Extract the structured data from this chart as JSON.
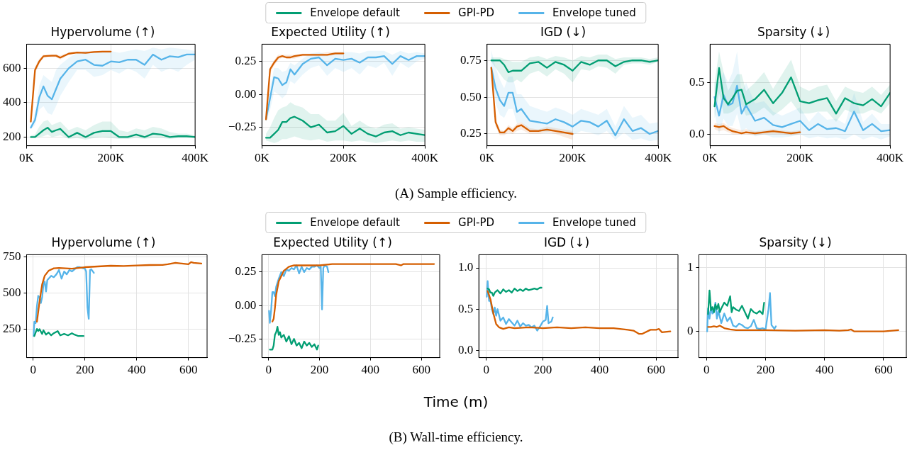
{
  "chart_data": [
    {
      "type": "line",
      "title": "Hypervolume (↑)",
      "grid": true,
      "xlim": [
        0,
        400000
      ],
      "xticks": [
        {
          "value": 0,
          "label": "0K"
        },
        {
          "value": 200000,
          "label": "200K"
        },
        {
          "value": 400000,
          "label": "400K"
        }
      ],
      "ylim": [
        150,
        740
      ],
      "yticks": [
        200,
        400,
        600
      ],
      "x": [
        10000,
        20000,
        30000,
        40000,
        50000,
        60000,
        70000,
        80000,
        100000,
        120000,
        140000,
        160000,
        180000,
        200000,
        220000,
        240000,
        260000,
        280000,
        300000,
        320000,
        340000,
        360000,
        380000,
        400000
      ],
      "series": [
        {
          "color": "#029e73",
          "values": [
            200,
            200,
            220,
            240,
            255,
            230,
            240,
            248,
            200,
            225,
            200,
            225,
            235,
            235,
            200,
            200,
            215,
            200,
            220,
            215,
            200,
            205,
            205,
            200
          ],
          "lower": [
            195,
            195,
            200,
            205,
            215,
            200,
            205,
            210,
            190,
            195,
            185,
            195,
            200,
            195,
            190,
            190,
            195,
            190,
            195,
            195,
            190,
            195,
            195,
            195
          ],
          "upper": [
            210,
            215,
            260,
            290,
            300,
            270,
            280,
            290,
            240,
            260,
            240,
            270,
            290,
            290,
            240,
            230,
            250,
            240,
            260,
            250,
            230,
            220,
            220,
            210
          ]
        },
        {
          "color": "#d55e00",
          "x": [
            10000,
            20000,
            30000,
            40000,
            50000,
            60000,
            70000,
            80000,
            100000,
            120000,
            140000,
            160000,
            180000,
            200000
          ],
          "values": [
            290,
            590,
            640,
            670,
            672,
            673,
            673,
            662,
            685,
            692,
            690,
            695,
            697,
            697
          ],
          "lower": [
            280,
            570,
            625,
            660,
            665,
            665,
            665,
            650,
            680,
            688,
            686,
            690,
            692,
            692
          ],
          "upper": [
            300,
            610,
            655,
            680,
            680,
            682,
            682,
            675,
            692,
            698,
            697,
            700,
            702,
            702
          ]
        },
        {
          "color": "#56b4e9",
          "values": [
            255,
            300,
            430,
            495,
            440,
            420,
            480,
            540,
            600,
            640,
            650,
            620,
            615,
            640,
            635,
            650,
            650,
            620,
            680,
            650,
            670,
            665,
            680,
            680
          ],
          "lower": [
            245,
            270,
            360,
            380,
            340,
            330,
            380,
            440,
            520,
            590,
            590,
            550,
            560,
            590,
            570,
            600,
            580,
            540,
            620,
            580,
            600,
            580,
            620,
            650
          ],
          "upper": [
            265,
            340,
            500,
            560,
            540,
            520,
            590,
            620,
            660,
            690,
            700,
            690,
            700,
            700,
            690,
            700,
            710,
            700,
            720,
            710,
            720,
            715,
            710,
            700
          ]
        }
      ]
    },
    {
      "type": "line",
      "title": "Expected Utility (↑)",
      "legend": "top",
      "grid": true,
      "xlim": [
        0,
        400000
      ],
      "xticks": [
        {
          "value": 0,
          "label": "0K"
        },
        {
          "value": 200000,
          "label": "200K"
        },
        {
          "value": 400000,
          "label": "400K"
        }
      ],
      "ylim": [
        -0.39,
        0.38
      ],
      "yticks": [
        {
          "value": -0.25,
          "label": "−0.25"
        },
        {
          "value": 0,
          "label": "0.00"
        },
        0.25
      ],
      "x": [
        10000,
        20000,
        30000,
        40000,
        50000,
        60000,
        70000,
        80000,
        100000,
        120000,
        140000,
        160000,
        180000,
        200000,
        220000,
        240000,
        260000,
        280000,
        300000,
        320000,
        340000,
        360000,
        380000,
        400000
      ],
      "series": [
        {
          "name": "Envelope default",
          "color": "#029e73",
          "values": [
            -0.33,
            -0.33,
            -0.3,
            -0.27,
            -0.21,
            -0.21,
            -0.18,
            -0.17,
            -0.2,
            -0.25,
            -0.23,
            -0.29,
            -0.28,
            -0.24,
            -0.3,
            -0.26,
            -0.3,
            -0.32,
            -0.29,
            -0.28,
            -0.31,
            -0.29,
            -0.3,
            -0.31
          ],
          "lower": [
            -0.35,
            -0.36,
            -0.37,
            -0.36,
            -0.34,
            -0.34,
            -0.33,
            -0.32,
            -0.34,
            -0.35,
            -0.34,
            -0.36,
            -0.35,
            -0.35,
            -0.36,
            -0.35,
            -0.36,
            -0.37,
            -0.36,
            -0.35,
            -0.36,
            -0.35,
            -0.36,
            -0.36
          ],
          "upper": [
            -0.3,
            -0.25,
            -0.18,
            -0.12,
            -0.1,
            -0.09,
            -0.06,
            -0.08,
            -0.1,
            -0.15,
            -0.15,
            -0.2,
            -0.2,
            -0.14,
            -0.24,
            -0.2,
            -0.24,
            -0.26,
            -0.23,
            -0.22,
            -0.26,
            -0.25,
            -0.26,
            -0.27
          ]
        },
        {
          "name": "GPI-PD",
          "color": "#d55e00",
          "x": [
            10000,
            20000,
            30000,
            40000,
            50000,
            60000,
            70000,
            80000,
            100000,
            120000,
            140000,
            160000,
            180000,
            200000
          ],
          "values": [
            -0.19,
            0.19,
            0.24,
            0.28,
            0.29,
            0.28,
            0.28,
            0.29,
            0.3,
            0.3,
            0.3,
            0.3,
            0.31,
            0.31
          ],
          "lower": [
            -0.2,
            0.16,
            0.22,
            0.26,
            0.28,
            0.27,
            0.27,
            0.27,
            0.29,
            0.29,
            0.29,
            0.29,
            0.3,
            0.3
          ],
          "upper": [
            -0.18,
            0.21,
            0.26,
            0.3,
            0.3,
            0.3,
            0.3,
            0.3,
            0.31,
            0.31,
            0.31,
            0.32,
            0.32,
            0.32
          ]
        },
        {
          "name": "Envelope tuned",
          "color": "#56b4e9",
          "values": [
            -0.19,
            -0.03,
            0.13,
            0.12,
            0.07,
            0.09,
            0.19,
            0.15,
            0.23,
            0.27,
            0.28,
            0.22,
            0.27,
            0.26,
            0.27,
            0.24,
            0.28,
            0.28,
            0.29,
            0.23,
            0.29,
            0.26,
            0.29,
            0.29
          ],
          "lower": [
            -0.21,
            -0.12,
            0.02,
            0.0,
            -0.03,
            0.0,
            0.1,
            0.08,
            0.15,
            0.2,
            0.22,
            0.14,
            0.2,
            0.17,
            0.2,
            0.15,
            0.22,
            0.2,
            0.24,
            0.14,
            0.24,
            0.2,
            0.25,
            0.27
          ],
          "upper": [
            -0.17,
            0.05,
            0.2,
            0.2,
            0.17,
            0.18,
            0.24,
            0.22,
            0.27,
            0.31,
            0.32,
            0.3,
            0.32,
            0.32,
            0.32,
            0.31,
            0.33,
            0.33,
            0.33,
            0.3,
            0.33,
            0.31,
            0.32,
            0.31
          ]
        }
      ]
    },
    {
      "type": "line",
      "title": "IGD (↓)",
      "grid": true,
      "xlim": [
        0,
        400000
      ],
      "xticks": [
        {
          "value": 0,
          "label": "0K"
        },
        {
          "value": 200000,
          "label": "200K"
        },
        {
          "value": 400000,
          "label": "400K"
        }
      ],
      "ylim": [
        0.17,
        0.86
      ],
      "yticks": [
        0.25,
        {
          "value": 0.5,
          "label": "0.50"
        },
        0.75
      ],
      "x": [
        10000,
        20000,
        30000,
        40000,
        50000,
        60000,
        70000,
        80000,
        100000,
        120000,
        140000,
        160000,
        180000,
        200000,
        220000,
        240000,
        260000,
        280000,
        300000,
        320000,
        340000,
        360000,
        380000,
        400000
      ],
      "series": [
        {
          "color": "#029e73",
          "values": [
            0.75,
            0.75,
            0.75,
            0.72,
            0.67,
            0.68,
            0.68,
            0.68,
            0.73,
            0.74,
            0.7,
            0.74,
            0.72,
            0.68,
            0.74,
            0.72,
            0.75,
            0.75,
            0.71,
            0.74,
            0.75,
            0.75,
            0.74,
            0.75
          ],
          "lower": [
            0.74,
            0.7,
            0.66,
            0.62,
            0.6,
            0.6,
            0.62,
            0.6,
            0.66,
            0.68,
            0.64,
            0.69,
            0.66,
            0.6,
            0.69,
            0.68,
            0.71,
            0.7,
            0.66,
            0.72,
            0.73,
            0.73,
            0.72,
            0.74
          ],
          "upper": [
            0.77,
            0.77,
            0.77,
            0.76,
            0.75,
            0.74,
            0.74,
            0.74,
            0.77,
            0.78,
            0.76,
            0.78,
            0.77,
            0.75,
            0.78,
            0.77,
            0.79,
            0.79,
            0.76,
            0.77,
            0.77,
            0.77,
            0.76,
            0.77
          ]
        },
        {
          "color": "#d55e00",
          "x": [
            10000,
            20000,
            30000,
            40000,
            50000,
            60000,
            70000,
            80000,
            100000,
            120000,
            140000,
            160000,
            180000,
            200000
          ],
          "values": [
            0.7,
            0.33,
            0.26,
            0.26,
            0.29,
            0.27,
            0.3,
            0.31,
            0.27,
            0.27,
            0.28,
            0.27,
            0.26,
            0.25
          ],
          "lower": [
            0.68,
            0.3,
            0.24,
            0.24,
            0.26,
            0.25,
            0.27,
            0.28,
            0.25,
            0.25,
            0.26,
            0.25,
            0.23,
            0.21
          ],
          "upper": [
            0.72,
            0.36,
            0.28,
            0.27,
            0.31,
            0.29,
            0.32,
            0.33,
            0.29,
            0.28,
            0.3,
            0.29,
            0.28,
            0.27
          ]
        },
        {
          "color": "#56b4e9",
          "values": [
            0.7,
            0.56,
            0.48,
            0.44,
            0.53,
            0.53,
            0.4,
            0.42,
            0.34,
            0.33,
            0.32,
            0.35,
            0.33,
            0.3,
            0.34,
            0.33,
            0.3,
            0.34,
            0.24,
            0.35,
            0.27,
            0.29,
            0.25,
            0.27
          ],
          "lower": [
            0.66,
            0.46,
            0.38,
            0.36,
            0.42,
            0.42,
            0.32,
            0.33,
            0.27,
            0.27,
            0.26,
            0.28,
            0.27,
            0.24,
            0.27,
            0.26,
            0.24,
            0.27,
            0.21,
            0.26,
            0.21,
            0.22,
            0.2,
            0.21
          ],
          "upper": [
            0.82,
            0.7,
            0.62,
            0.56,
            0.64,
            0.64,
            0.52,
            0.52,
            0.44,
            0.42,
            0.4,
            0.43,
            0.41,
            0.38,
            0.42,
            0.4,
            0.38,
            0.42,
            0.3,
            0.44,
            0.36,
            0.38,
            0.32,
            0.33
          ]
        }
      ]
    },
    {
      "type": "line",
      "title": "Sparsity (↓)",
      "grid": true,
      "xlim": [
        0,
        400000
      ],
      "xticks": [
        {
          "value": 0,
          "label": "0K"
        },
        {
          "value": 200000,
          "label": "200K"
        },
        {
          "value": 400000,
          "label": "400K"
        }
      ],
      "ylim": [
        -0.11,
        0.87
      ],
      "yticks": [
        {
          "value": 0,
          "label": "0.0"
        },
        0.5
      ],
      "annotations": [
        "(A) Sample efficiency."
      ],
      "x": [
        10000,
        20000,
        30000,
        40000,
        50000,
        60000,
        70000,
        80000,
        100000,
        120000,
        140000,
        160000,
        180000,
        200000,
        220000,
        240000,
        260000,
        280000,
        300000,
        320000,
        340000,
        360000,
        380000,
        400000
      ],
      "series": [
        {
          "color": "#029e73",
          "values": [
            0.27,
            0.64,
            0.35,
            0.29,
            0.35,
            0.42,
            0.43,
            0.29,
            0.34,
            0.43,
            0.3,
            0.4,
            0.55,
            0.32,
            0.3,
            0.33,
            0.35,
            0.2,
            0.35,
            0.3,
            0.28,
            0.34,
            0.27,
            0.4
          ],
          "lower": [
            0.15,
            0.4,
            0.2,
            0.2,
            0.22,
            0.26,
            0.28,
            0.18,
            0.2,
            0.26,
            0.18,
            0.24,
            0.32,
            0.2,
            0.2,
            0.22,
            0.22,
            0.12,
            0.24,
            0.2,
            0.2,
            0.24,
            0.2,
            0.3
          ],
          "upper": [
            0.5,
            0.8,
            0.6,
            0.42,
            0.5,
            0.58,
            0.58,
            0.42,
            0.5,
            0.6,
            0.44,
            0.58,
            0.72,
            0.46,
            0.42,
            0.46,
            0.48,
            0.32,
            0.46,
            0.42,
            0.4,
            0.46,
            0.38,
            0.48
          ]
        },
        {
          "color": "#d55e00",
          "x": [
            10000,
            20000,
            30000,
            40000,
            50000,
            60000,
            70000,
            80000,
            100000,
            120000,
            140000,
            160000,
            180000,
            200000
          ],
          "values": [
            0.08,
            0.07,
            0.08,
            0.05,
            0.03,
            0.02,
            0.01,
            0.02,
            0.01,
            0.02,
            0.03,
            0.02,
            0.01,
            0.02
          ],
          "lower": [
            0.05,
            0.03,
            0.04,
            0.02,
            0.0,
            0.0,
            0.0,
            0.0,
            -0.01,
            0.0,
            0.0,
            0.0,
            -0.01,
            0.0
          ],
          "upper": [
            0.11,
            0.1,
            0.11,
            0.08,
            0.06,
            0.05,
            0.04,
            0.05,
            0.03,
            0.04,
            0.05,
            0.04,
            0.03,
            0.04
          ]
        },
        {
          "color": "#56b4e9",
          "values": [
            0.36,
            0.18,
            0.38,
            0.28,
            0.3,
            0.47,
            0.2,
            0.28,
            0.13,
            0.16,
            0.09,
            0.07,
            0.1,
            0.13,
            0.04,
            0.1,
            0.05,
            0.06,
            0.03,
            0.22,
            0.04,
            0.1,
            0.03,
            0.04
          ],
          "lower": [
            0.2,
            0.0,
            0.15,
            0.08,
            0.08,
            0.2,
            0.02,
            0.06,
            -0.02,
            0.0,
            -0.03,
            -0.03,
            -0.02,
            0.0,
            -0.04,
            -0.02,
            -0.04,
            -0.03,
            -0.05,
            0.0,
            -0.05,
            -0.02,
            -0.05,
            -0.02
          ],
          "upper": [
            0.5,
            0.5,
            0.6,
            0.5,
            0.6,
            0.8,
            0.4,
            0.5,
            0.3,
            0.32,
            0.22,
            0.18,
            0.22,
            0.26,
            0.12,
            0.22,
            0.14,
            0.15,
            0.1,
            0.4,
            0.12,
            0.2,
            0.1,
            0.1
          ]
        }
      ]
    },
    {
      "type": "line",
      "title": "Hypervolume (↑)",
      "grid": true,
      "xlim": [
        -25,
        672
      ],
      "xticks": [
        0,
        200,
        400,
        600
      ],
      "ylim": [
        50,
        767
      ],
      "yticks": [
        250,
        500,
        750
      ],
      "series": [
        {
          "color": "#029e73",
          "x": [
            5,
            15,
            20,
            25,
            35,
            40,
            50,
            60,
            70,
            80,
            95,
            105,
            120,
            135,
            150,
            160,
            175,
            195
          ],
          "values": [
            200,
            250,
            235,
            248,
            215,
            240,
            210,
            225,
            205,
            220,
            235,
            205,
            215,
            205,
            220,
            210,
            200,
            200
          ]
        },
        {
          "color": "#d55e00",
          "x": [
            15,
            25,
            35,
            45,
            60,
            80,
            100,
            150,
            200,
            250,
            300,
            350,
            400,
            450,
            500,
            520,
            550,
            600,
            610,
            620,
            650
          ],
          "values": [
            300,
            440,
            560,
            620,
            655,
            672,
            675,
            670,
            680,
            685,
            690,
            688,
            692,
            695,
            696,
            700,
            710,
            700,
            715,
            710,
            705
          ]
        },
        {
          "color": "#56b4e9",
          "x": [
            2,
            5,
            10,
            15,
            20,
            25,
            30,
            35,
            40,
            45,
            50,
            55,
            60,
            70,
            80,
            90,
            100,
            110,
            120,
            130,
            140,
            150,
            160,
            170,
            180,
            190,
            200,
            205,
            210,
            215,
            220,
            225,
            235
          ],
          "values": [
            200,
            300,
            290,
            410,
            480,
            470,
            430,
            470,
            560,
            580,
            510,
            590,
            600,
            620,
            610,
            630,
            660,
            600,
            650,
            630,
            660,
            650,
            665,
            680,
            680,
            675,
            670,
            650,
            400,
            320,
            660,
            665,
            640
          ]
        }
      ]
    },
    {
      "type": "line",
      "title": "Expected Utility (↑)",
      "legend": "top",
      "xlabel": "Time (m)",
      "grid": true,
      "xlim": [
        -26,
        672
      ],
      "xticks": [
        0,
        200,
        400,
        600
      ],
      "ylim": [
        -0.39,
        0.38
      ],
      "yticks": [
        {
          "value": -0.25,
          "label": "−0.25"
        },
        {
          "value": 0,
          "label": "0.00"
        },
        0.25
      ],
      "series": [
        {
          "name": "Envelope default",
          "color": "#029e73",
          "x": [
            5,
            15,
            20,
            25,
            30,
            35,
            40,
            45,
            50,
            60,
            70,
            80,
            90,
            100,
            110,
            120,
            130,
            140,
            150,
            160,
            170,
            180,
            190,
            195
          ],
          "values": [
            -0.33,
            -0.33,
            -0.3,
            -0.22,
            -0.2,
            -0.16,
            -0.22,
            -0.2,
            -0.24,
            -0.22,
            -0.27,
            -0.23,
            -0.29,
            -0.25,
            -0.3,
            -0.28,
            -0.32,
            -0.27,
            -0.3,
            -0.28,
            -0.31,
            -0.29,
            -0.33,
            -0.3
          ]
        },
        {
          "name": "GPI-PD",
          "color": "#d55e00",
          "x": [
            15,
            20,
            25,
            30,
            40,
            50,
            60,
            80,
            100,
            150,
            200,
            250,
            300,
            400,
            500,
            520,
            530,
            550,
            600,
            650
          ],
          "values": [
            -0.12,
            -0.1,
            -0.02,
            0.08,
            0.18,
            0.22,
            0.26,
            0.29,
            0.3,
            0.3,
            0.3,
            0.31,
            0.31,
            0.31,
            0.31,
            0.3,
            0.31,
            0.31,
            0.31,
            0.31
          ]
        },
        {
          "name": "Envelope tuned",
          "color": "#56b4e9",
          "x": [
            2,
            5,
            10,
            15,
            20,
            25,
            30,
            40,
            50,
            60,
            70,
            80,
            90,
            100,
            110,
            120,
            130,
            140,
            150,
            160,
            170,
            180,
            190,
            200,
            205,
            210,
            215,
            220,
            230,
            235
          ],
          "values": [
            -0.04,
            -0.13,
            -0.04,
            0.1,
            0.1,
            0.07,
            0.14,
            0.2,
            0.25,
            0.22,
            0.27,
            0.26,
            0.28,
            0.27,
            0.3,
            0.24,
            0.29,
            0.25,
            0.28,
            0.27,
            0.29,
            0.29,
            0.3,
            0.28,
            0.29,
            -0.03,
            0.28,
            0.3,
            0.29,
            0.25
          ]
        }
      ]
    },
    {
      "type": "line",
      "title": "IGD (↓)",
      "grid": true,
      "xlim": [
        -26,
        677
      ],
      "xticks": [
        0,
        200,
        400,
        600
      ],
      "ylim": [
        -0.087,
        1.16
      ],
      "yticks": [
        {
          "value": 0,
          "label": "0.0"
        },
        0.5,
        {
          "value": 1,
          "label": "1.0"
        }
      ],
      "series": [
        {
          "color": "#029e73",
          "x": [
            5,
            10,
            15,
            20,
            25,
            30,
            40,
            50,
            60,
            70,
            80,
            90,
            100,
            110,
            120,
            130,
            140,
            150,
            160,
            170,
            180,
            190,
            195
          ],
          "values": [
            0.75,
            0.74,
            0.7,
            0.7,
            0.66,
            0.7,
            0.73,
            0.69,
            0.74,
            0.71,
            0.73,
            0.7,
            0.75,
            0.72,
            0.74,
            0.72,
            0.75,
            0.73,
            0.74,
            0.75,
            0.74,
            0.76,
            0.76
          ]
        },
        {
          "color": "#d55e00",
          "x": [
            5,
            15,
            25,
            35,
            45,
            60,
            80,
            100,
            150,
            200,
            250,
            300,
            350,
            400,
            450,
            500,
            520,
            540,
            550,
            580,
            600,
            610,
            620,
            650
          ],
          "values": [
            0.72,
            0.62,
            0.45,
            0.32,
            0.28,
            0.26,
            0.28,
            0.27,
            0.28,
            0.27,
            0.28,
            0.27,
            0.28,
            0.27,
            0.27,
            0.25,
            0.24,
            0.2,
            0.2,
            0.25,
            0.25,
            0.26,
            0.22,
            0.23
          ]
        },
        {
          "color": "#56b4e9",
          "x": [
            2,
            5,
            10,
            15,
            20,
            25,
            30,
            35,
            40,
            50,
            60,
            70,
            80,
            90,
            100,
            110,
            120,
            130,
            140,
            150,
            160,
            170,
            180,
            190,
            200,
            210,
            215,
            220,
            230,
            235
          ],
          "values": [
            0.65,
            0.84,
            0.6,
            0.6,
            0.5,
            0.44,
            0.52,
            0.42,
            0.5,
            0.36,
            0.4,
            0.32,
            0.38,
            0.34,
            0.3,
            0.36,
            0.29,
            0.33,
            0.3,
            0.31,
            0.28,
            0.3,
            0.24,
            0.29,
            0.35,
            0.37,
            0.54,
            0.33,
            0.35,
            0.4
          ]
        }
      ]
    },
    {
      "type": "line",
      "title": "Sparsity (↓)",
      "grid": true,
      "xlim": [
        -26,
        677
      ],
      "xticks": [
        0,
        200,
        400,
        600
      ],
      "ylim": [
        -0.41,
        1.2
      ],
      "yticks": [
        0,
        1
      ],
      "annotations": [
        "(B) Wall-time efficiency."
      ],
      "series": [
        {
          "color": "#029e73",
          "x": [
            5,
            10,
            15,
            20,
            25,
            30,
            35,
            40,
            45,
            50,
            60,
            70,
            80,
            85,
            90,
            100,
            110,
            120,
            130,
            140,
            150,
            160,
            170,
            180,
            190,
            195
          ],
          "values": [
            0.27,
            0.64,
            0.33,
            0.38,
            0.3,
            0.42,
            0.35,
            0.43,
            0.3,
            0.36,
            0.45,
            0.4,
            0.55,
            0.3,
            0.38,
            0.34,
            0.32,
            0.4,
            0.3,
            0.2,
            0.35,
            0.3,
            0.28,
            0.32,
            0.27,
            0.45
          ]
        },
        {
          "color": "#d55e00",
          "x": [
            5,
            15,
            25,
            35,
            45,
            60,
            80,
            100,
            150,
            200,
            300,
            400,
            450,
            480,
            490,
            500,
            550,
            600,
            650
          ],
          "values": [
            0.07,
            0.07,
            0.08,
            0.07,
            0.09,
            0.05,
            0.03,
            0.02,
            0.02,
            0.02,
            0.01,
            0.02,
            0.01,
            0.02,
            0.03,
            0.0,
            0.0,
            0.0,
            0.02
          ]
        },
        {
          "color": "#56b4e9",
          "x": [
            2,
            5,
            10,
            15,
            20,
            25,
            30,
            35,
            40,
            50,
            60,
            70,
            80,
            90,
            100,
            110,
            120,
            130,
            140,
            150,
            160,
            170,
            180,
            190,
            200,
            210,
            215,
            220,
            230,
            235
          ],
          "values": [
            0.0,
            0.36,
            0.2,
            0.38,
            0.28,
            0.3,
            0.45,
            0.2,
            0.32,
            0.13,
            0.28,
            0.16,
            0.22,
            0.09,
            0.07,
            0.12,
            0.1,
            0.06,
            0.05,
            0.08,
            0.18,
            0.05,
            0.04,
            0.05,
            0.03,
            0.35,
            0.6,
            0.1,
            0.04,
            0.08
          ]
        }
      ]
    }
  ]
}
